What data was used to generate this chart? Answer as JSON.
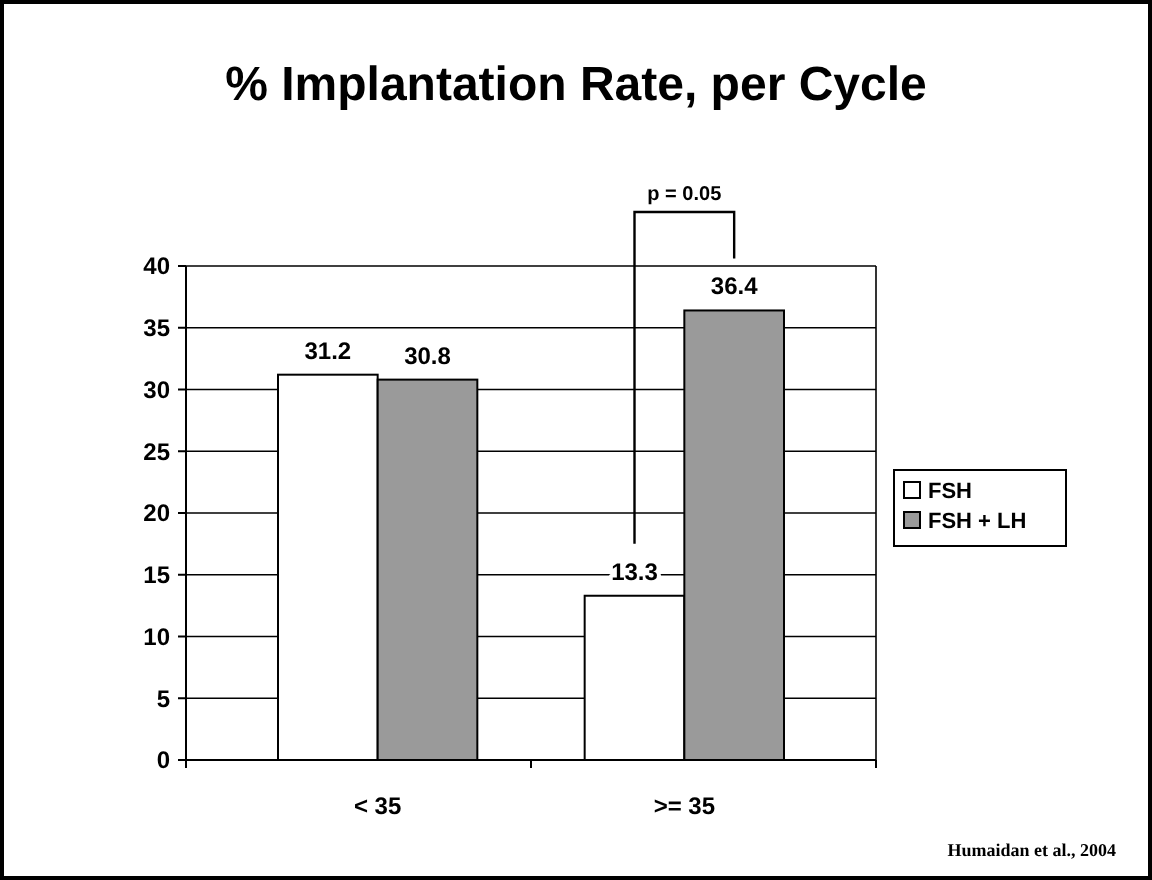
{
  "chart_data": {
    "type": "bar",
    "title": "% Implantation Rate, per Cycle",
    "categories": [
      "< 35",
      ">= 35"
    ],
    "series": [
      {
        "name": "FSH",
        "color": "#ffffff",
        "values": [
          31.2,
          13.3
        ]
      },
      {
        "name": "FSH + LH",
        "color": "#9a9a9a",
        "values": [
          30.8,
          36.4
        ]
      }
    ],
    "ylim": [
      0,
      40
    ],
    "yticks": [
      0,
      5,
      10,
      15,
      20,
      25,
      30,
      35,
      40
    ],
    "grid": "y",
    "legend": "right",
    "data_labels": true,
    "annotations": [
      "p = 0.05",
      "Humaidan et al., 2004"
    ]
  }
}
